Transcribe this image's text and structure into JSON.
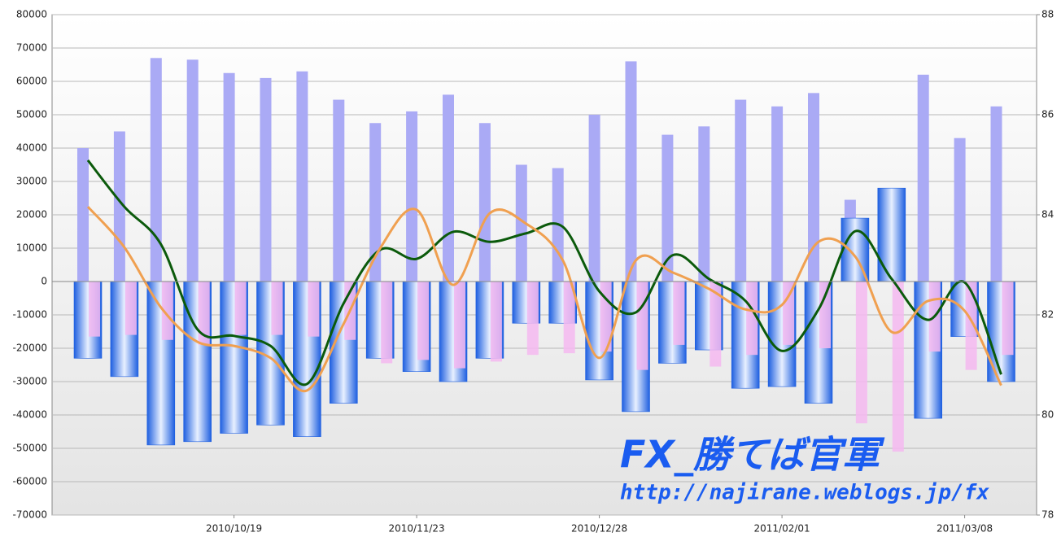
{
  "chart_data": {
    "type": "bar",
    "categories": [
      null,
      null,
      null,
      null,
      "2010/10/19",
      null,
      null,
      null,
      null,
      "2010/11/23",
      null,
      null,
      null,
      null,
      "2010/12/28",
      null,
      null,
      null,
      null,
      "2011/02/01",
      null,
      null,
      null,
      null,
      "2011/03/08",
      null
    ],
    "series": [
      {
        "type": "bar",
        "color": "#aaaaf5",
        "values": [
          40000,
          45000,
          67000,
          66500,
          62500,
          61000,
          63000,
          54500,
          47500,
          51000,
          56000,
          47500,
          35000,
          34000,
          50000,
          66000,
          44000,
          46500,
          54500,
          52500,
          56500,
          24500,
          23500,
          62000,
          43000,
          52500
        ]
      },
      {
        "type": "bar",
        "color": "#2a6fe8",
        "values": [
          -23000,
          -28500,
          -49000,
          -48000,
          -45500,
          -43000,
          -46500,
          -36500,
          -23000,
          -27000,
          -30000,
          -23000,
          -12500,
          -12500,
          -29500,
          -39000,
          -24500,
          -20500,
          -32000,
          -31500,
          -36500,
          19000,
          28000,
          -41000,
          -16500,
          -30000
        ]
      },
      {
        "type": "bar",
        "color": "#f5b8f0",
        "values": [
          -16500,
          -16000,
          -17500,
          -19000,
          -16000,
          -16000,
          -16500,
          -17500,
          -24500,
          -23500,
          -26000,
          -24000,
          -22000,
          -21500,
          -21000,
          -26500,
          -19000,
          -25500,
          -22000,
          -19000,
          -20000,
          -42500,
          -51000,
          -21000,
          -26500,
          -22000
        ]
      },
      {
        "type": "line",
        "axis": "y2",
        "color": "#0b5a0b",
        "values": [
          85.09,
          84.16,
          83.41,
          81.71,
          81.58,
          81.38,
          80.62,
          82.23,
          83.3,
          83.12,
          83.66,
          83.46,
          83.63,
          83.76,
          82.47,
          82.05,
          83.19,
          82.72,
          82.28,
          81.28,
          82.11,
          83.67,
          82.72,
          81.9,
          82.65,
          80.81
        ]
      },
      {
        "type": "line",
        "axis": "y2",
        "color": "#f0a050",
        "values": [
          84.16,
          83.35,
          82.15,
          81.46,
          81.38,
          81.14,
          80.49,
          81.82,
          83.33,
          84.1,
          82.6,
          84.03,
          83.82,
          83.09,
          81.14,
          83.09,
          82.85,
          82.52,
          82.11,
          82.2,
          83.46,
          83.17,
          81.66,
          82.28,
          82.08,
          80.59
        ]
      }
    ],
    "ylim": [
      -70000,
      80000
    ],
    "yticks": [
      -70000,
      -60000,
      -50000,
      -40000,
      -30000,
      -20000,
      -10000,
      0,
      10000,
      20000,
      30000,
      40000,
      50000,
      60000,
      70000,
      80000
    ],
    "y2lim": [
      78,
      88
    ],
    "y2ticks": [
      78,
      80,
      82,
      84,
      86,
      88
    ],
    "grid": true,
    "annotations": [
      "FX_勝てば官軍",
      "http://najirane.weblogs.jp/fx"
    ]
  }
}
